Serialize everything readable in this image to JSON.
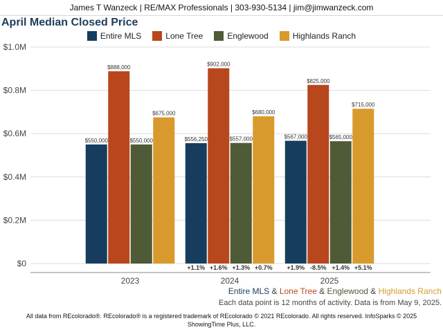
{
  "header": {
    "contact": "James T Wanzeck | RE/MAX Professionals | 303-930-5134 | jim@jimwanzeck.com"
  },
  "chart_data": {
    "type": "bar",
    "title": "April Median Closed Price",
    "categories": [
      "2023",
      "2024",
      "2025"
    ],
    "ylim": [
      0,
      1000000
    ],
    "yticks": [
      {
        "value": 0,
        "label": "$0"
      },
      {
        "value": 200000,
        "label": "$0.2M"
      },
      {
        "value": 400000,
        "label": "$0.4M"
      },
      {
        "value": 600000,
        "label": "$0.6M"
      },
      {
        "value": 800000,
        "label": "$0.8M"
      },
      {
        "value": 1000000,
        "label": "$1.0M"
      }
    ],
    "grid": true,
    "legend_position": "top",
    "series": [
      {
        "name": "Entire MLS",
        "color": "#173d5e",
        "values": [
          550000,
          556250,
          567000
        ],
        "labels": [
          "$550,000",
          "$556,250",
          "$567,000"
        ],
        "changes": [
          "",
          "+1.1%",
          "+1.9%"
        ]
      },
      {
        "name": "Lone Tree",
        "color": "#b8471d",
        "values": [
          888000,
          902000,
          825000
        ],
        "labels": [
          "$888,000",
          "$902,000",
          "$825,000"
        ],
        "changes": [
          "",
          "+1.6%",
          "-8.5%"
        ]
      },
      {
        "name": "Englewood",
        "color": "#4f5a36",
        "values": [
          550000,
          557000,
          565000
        ],
        "labels": [
          "$550,000",
          "$557,000",
          "$565,000"
        ],
        "changes": [
          "",
          "+1.3%",
          "+1.4%"
        ]
      },
      {
        "name": "Highlands Ranch",
        "color": "#d89a2c",
        "values": [
          675000,
          680000,
          715000
        ],
        "labels": [
          "$675,000",
          "$680,000",
          "$715,000"
        ],
        "changes": [
          "",
          "+0.7%",
          "+5.1%"
        ]
      }
    ]
  },
  "footer": {
    "series_names": [
      "Entire MLS",
      "Lone Tree",
      "Englewood",
      "Highlands Ranch"
    ],
    "separator": " & ",
    "note": "Each data point is 12 months of activity. Data is from May 9, 2025.",
    "copyright": "All data from REcolorado®. REcolorado® is a registered trademark of REcolorado © 2021 REcolorado. All rights reserved. InfoSparks © 2025 ShowingTime Plus, LLC."
  }
}
